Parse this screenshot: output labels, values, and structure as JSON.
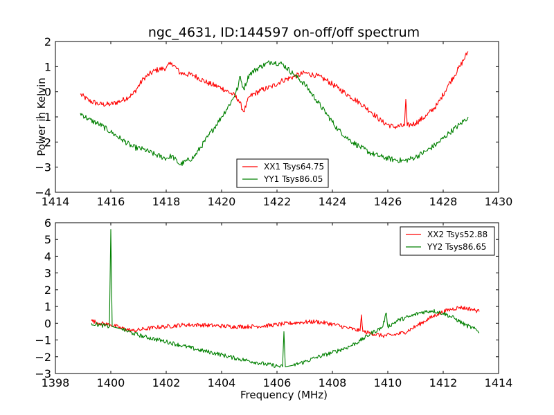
{
  "chart_data": [
    {
      "type": "line",
      "title": "ngc_4631, ID:144597 on-off/off spectrum",
      "xlabel": "",
      "ylabel": "Power in Kelvin",
      "xlim": [
        1414,
        1430
      ],
      "ylim": [
        -4,
        2
      ],
      "xticks": [
        "1414",
        "1416",
        "1418",
        "1420",
        "1422",
        "1424",
        "1426",
        "1428",
        "1430"
      ],
      "yticks": [
        "−4",
        "−3",
        "−2",
        "−1",
        "0",
        "1",
        "2"
      ],
      "grid": false,
      "legend": "lower-center",
      "series": [
        {
          "name": "XX1 Tsys64.75",
          "color": "#ff0000",
          "x": [
            1414.9,
            1415.2,
            1415.6,
            1416.0,
            1416.4,
            1416.8,
            1417.2,
            1417.6,
            1418.0,
            1418.2,
            1418.5,
            1419.0,
            1419.5,
            1420.0,
            1420.4,
            1420.6,
            1420.8,
            1421.0,
            1421.4,
            1421.8,
            1422.2,
            1422.6,
            1423.0,
            1423.4,
            1423.8,
            1424.2,
            1424.6,
            1425.0,
            1425.4,
            1425.8,
            1426.2,
            1426.6,
            1426.65,
            1426.7,
            1427.0,
            1427.4,
            1427.8,
            1428.2,
            1428.6,
            1428.9
          ],
          "y": [
            -0.1,
            -0.35,
            -0.5,
            -0.5,
            -0.35,
            -0.1,
            0.55,
            0.85,
            0.95,
            1.15,
            0.75,
            0.65,
            0.35,
            0.15,
            -0.1,
            -0.3,
            -0.8,
            -0.2,
            0.05,
            0.2,
            0.45,
            0.6,
            0.75,
            0.65,
            0.45,
            0.15,
            -0.15,
            -0.45,
            -0.8,
            -1.2,
            -1.4,
            -1.35,
            -0.3,
            -1.35,
            -1.25,
            -0.95,
            -0.5,
            0.3,
            1.0,
            1.6
          ]
        },
        {
          "name": "YY1 Tsys86.05",
          "color": "#008000",
          "x": [
            1414.9,
            1415.2,
            1415.6,
            1416.0,
            1416.4,
            1416.8,
            1417.2,
            1417.6,
            1418.0,
            1418.2,
            1418.5,
            1419.0,
            1419.5,
            1420.0,
            1420.4,
            1420.6,
            1420.65,
            1420.8,
            1421.0,
            1421.4,
            1421.8,
            1422.2,
            1422.6,
            1423.0,
            1423.4,
            1423.8,
            1424.2,
            1424.6,
            1425.0,
            1425.4,
            1425.8,
            1426.2,
            1426.6,
            1427.0,
            1427.4,
            1427.8,
            1428.2,
            1428.6,
            1428.9
          ],
          "y": [
            -0.85,
            -1.1,
            -1.3,
            -1.6,
            -1.9,
            -2.2,
            -2.3,
            -2.5,
            -2.65,
            -2.55,
            -2.9,
            -2.6,
            -1.8,
            -1.0,
            -0.3,
            0.2,
            0.6,
            0.1,
            0.7,
            1.0,
            1.2,
            1.1,
            0.7,
            0.3,
            -0.3,
            -0.9,
            -1.5,
            -1.9,
            -2.2,
            -2.45,
            -2.6,
            -2.7,
            -2.75,
            -2.6,
            -2.35,
            -2.05,
            -1.65,
            -1.3,
            -1.0
          ]
        }
      ]
    },
    {
      "type": "line",
      "title": "",
      "xlabel": "Frequency (MHz)",
      "ylabel": "",
      "xlim": [
        1398,
        1414
      ],
      "ylim": [
        -3,
        6
      ],
      "xticks": [
        "1398",
        "1400",
        "1402",
        "1404",
        "1406",
        "1408",
        "1410",
        "1412",
        "1414"
      ],
      "yticks": [
        "−3",
        "−2",
        "−1",
        "0",
        "1",
        "2",
        "3",
        "4",
        "5",
        "6"
      ],
      "grid": false,
      "legend": "top-right",
      "series": [
        {
          "name": "XX2 Tsys52.88",
          "color": "#ff0000",
          "x": [
            1399.3,
            1399.6,
            1400.0,
            1400.4,
            1400.8,
            1401.2,
            1401.6,
            1402.0,
            1402.6,
            1403.2,
            1403.8,
            1404.4,
            1405.0,
            1405.6,
            1406.2,
            1406.8,
            1407.4,
            1408.0,
            1408.6,
            1409.0,
            1409.05,
            1409.1,
            1409.4,
            1409.8,
            1410.2,
            1410.6,
            1411.0,
            1411.4,
            1411.8,
            1412.2,
            1412.6,
            1413.0,
            1413.3
          ],
          "y": [
            0.15,
            0.0,
            -0.1,
            -0.3,
            -0.45,
            -0.35,
            -0.25,
            -0.2,
            -0.1,
            -0.1,
            -0.15,
            -0.2,
            -0.2,
            -0.15,
            -0.05,
            0.05,
            0.1,
            -0.05,
            -0.3,
            -0.45,
            0.5,
            -0.5,
            -0.6,
            -0.75,
            -0.7,
            -0.55,
            -0.2,
            0.2,
            0.55,
            0.8,
            0.95,
            0.85,
            0.7
          ]
        },
        {
          "name": "YY2 Tsys86.65",
          "color": "#008000",
          "x": [
            1399.3,
            1399.6,
            1399.95,
            1400.0,
            1400.05,
            1400.4,
            1400.8,
            1401.2,
            1401.6,
            1402.0,
            1402.6,
            1403.2,
            1403.8,
            1404.4,
            1405.0,
            1405.6,
            1406.0,
            1406.2,
            1406.25,
            1406.3,
            1406.6,
            1407.0,
            1407.4,
            1408.0,
            1408.6,
            1409.0,
            1409.4,
            1409.8,
            1409.95,
            1410.0,
            1410.4,
            1410.8,
            1411.2,
            1411.6,
            1412.0,
            1412.4,
            1412.8,
            1413.2,
            1413.3
          ],
          "y": [
            0.0,
            -0.1,
            -0.2,
            5.6,
            -0.2,
            -0.35,
            -0.6,
            -0.8,
            -0.95,
            -1.1,
            -1.35,
            -1.6,
            -1.8,
            -2.05,
            -2.25,
            -2.45,
            -2.55,
            -2.6,
            -0.5,
            -2.6,
            -2.5,
            -2.3,
            -2.05,
            -1.75,
            -1.4,
            -1.05,
            -0.6,
            -0.25,
            0.6,
            -0.2,
            0.2,
            0.4,
            0.65,
            0.75,
            0.6,
            0.3,
            -0.1,
            -0.4,
            -0.55
          ]
        }
      ]
    }
  ]
}
